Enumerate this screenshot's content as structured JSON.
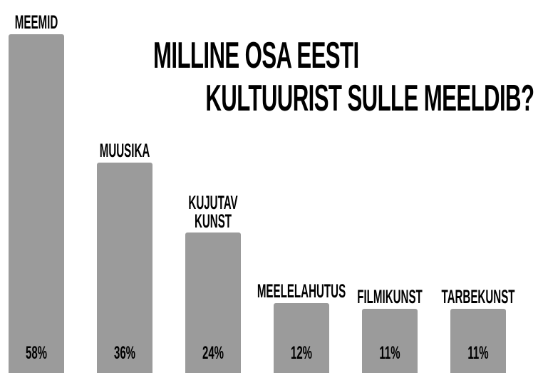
{
  "chart_data": {
    "type": "bar",
    "title": [
      "MILLINE OSA EESTI",
      "KULTUURIST SULLE MEELDIB?"
    ],
    "categories": [
      "MEEMID",
      "MUUSIKA",
      "KUJUTAV KUNST",
      "MEELELAHUTUS",
      "FILMIKUNST",
      "TARBEKUNST"
    ],
    "values": [
      58,
      36,
      24,
      12,
      11,
      11
    ],
    "value_labels": [
      "58%",
      "36%",
      "24%",
      "12%",
      "11%",
      "11%"
    ],
    "color": "#9b9b9b",
    "ylim": [
      0,
      63.8
    ]
  }
}
